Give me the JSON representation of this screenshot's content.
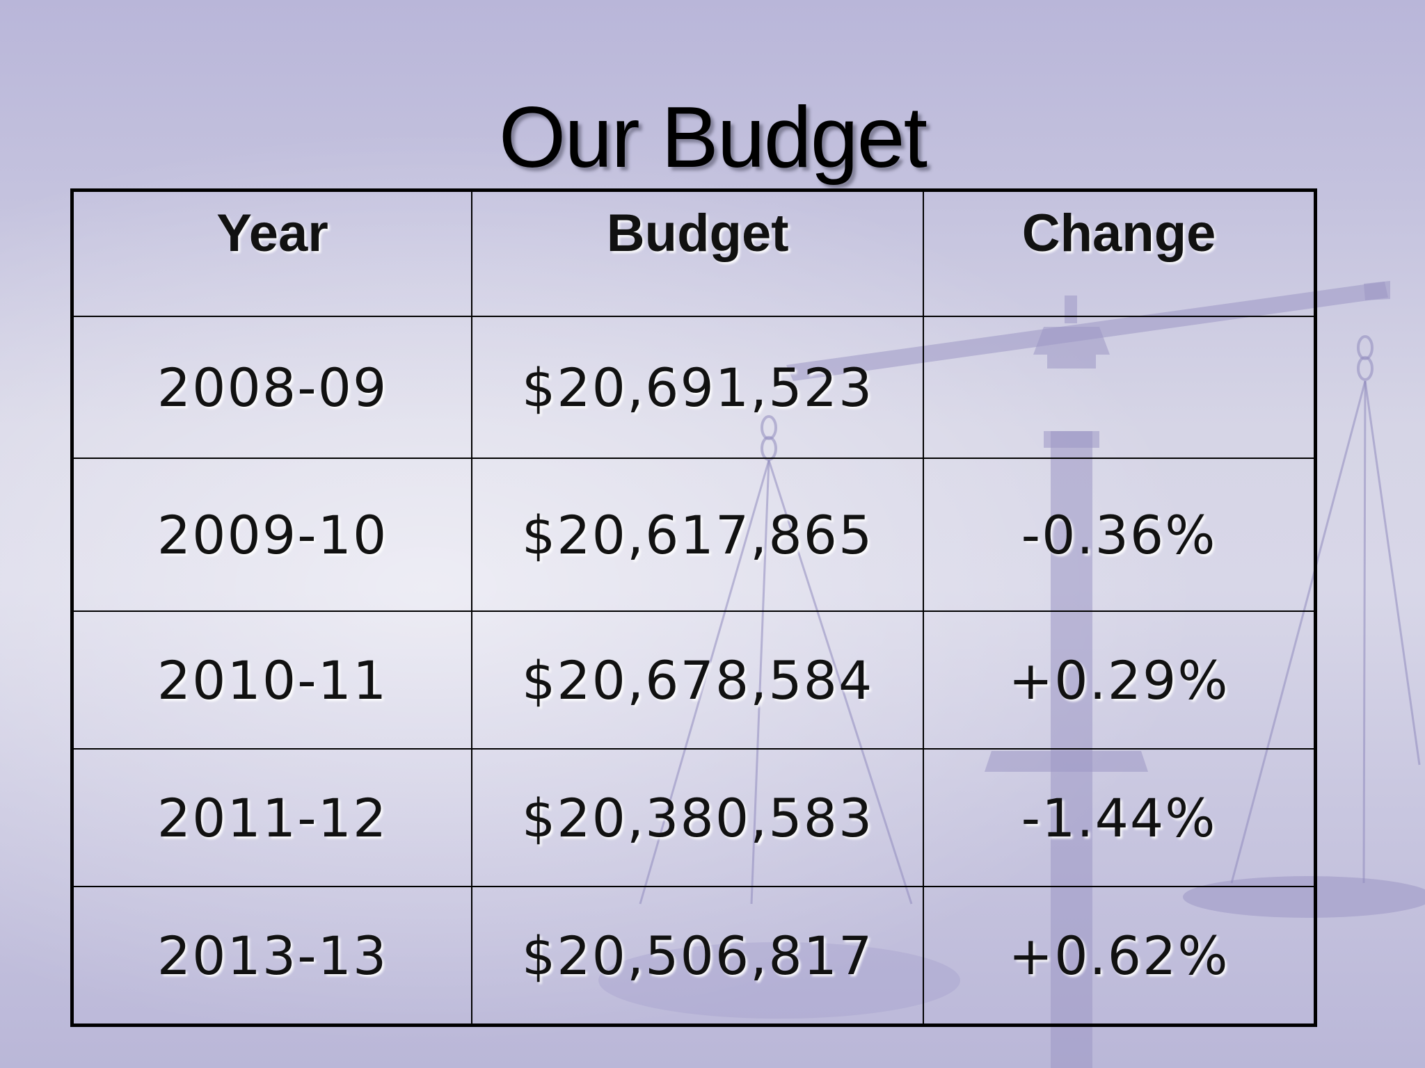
{
  "slide": {
    "title": "Our Budget"
  },
  "table": {
    "headers": [
      "Year",
      "Budget",
      "Change"
    ],
    "rows": [
      [
        "2008-09",
        "$20,691,523",
        ""
      ],
      [
        "2009-10",
        "$20,617,865",
        "-0.36%"
      ],
      [
        "2010-11",
        "$20,678,584",
        "+0.29%"
      ],
      [
        "2011-12",
        "$20,380,583",
        "-1.44%"
      ],
      [
        "2013-13",
        "$20,506,817",
        "+0.62%"
      ]
    ]
  },
  "background": {
    "watermark_icon": "balance-scale-icon",
    "colors": {
      "base": "#c9c7e0",
      "scale": "#9d98c4"
    }
  }
}
